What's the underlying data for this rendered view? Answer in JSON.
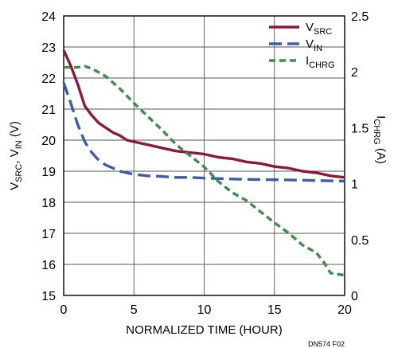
{
  "chart_data": {
    "type": "line",
    "xlabel": "NORMALIZED TIME (HOUR)",
    "ylabel_left": "V_SRC, V_IN (V)",
    "ylabel_left_parts": {
      "v1": "V",
      "sub1": "SRC",
      "sep": ", ",
      "v2": "V",
      "sub2": "IN",
      "unit": " (V)"
    },
    "ylabel_right": "I_CHRG (A)",
    "ylabel_right_parts": {
      "i": "I",
      "sub": "CHRG",
      "unit": " (A)"
    },
    "xlim": [
      0,
      20
    ],
    "ylim_left": [
      15,
      24
    ],
    "ylim_right": [
      0,
      2.5
    ],
    "x_ticks": [
      "0",
      "5",
      "10",
      "15",
      "20"
    ],
    "y_left_ticks": [
      "15",
      "16",
      "17",
      "18",
      "19",
      "20",
      "21",
      "22",
      "23",
      "24"
    ],
    "y_right_ticks": [
      "0",
      "0.5",
      "1",
      "1.5",
      "2",
      "2.5"
    ],
    "grid": true,
    "legend_position": "top-right",
    "note": "DN574 F02",
    "colors": {
      "vsrc": "#8b1a3a",
      "vin": "#3a5da8",
      "ichrg": "#3e8b4a"
    },
    "series": [
      {
        "name": "V_SRC",
        "label_main": "V",
        "label_sub": "SRC",
        "axis": "left",
        "style": "solid",
        "x": [
          0,
          0.5,
          1,
          1.5,
          2,
          2.5,
          3,
          3.5,
          4,
          4.5,
          5,
          6,
          7,
          8,
          9,
          10,
          11,
          12,
          13,
          14,
          15,
          16,
          17,
          18,
          19,
          20
        ],
        "y": [
          22.9,
          22.4,
          21.8,
          21.1,
          20.8,
          20.55,
          20.4,
          20.25,
          20.15,
          20.0,
          19.95,
          19.85,
          19.75,
          19.65,
          19.6,
          19.55,
          19.45,
          19.4,
          19.3,
          19.25,
          19.15,
          19.1,
          19.0,
          18.95,
          18.85,
          18.8
        ]
      },
      {
        "name": "V_IN",
        "label_main": "V",
        "label_sub": "IN",
        "axis": "left",
        "style": "dashed",
        "x": [
          0,
          0.5,
          1,
          1.5,
          2,
          2.5,
          3,
          3.5,
          4,
          4.5,
          5,
          6,
          7,
          8,
          9,
          10,
          12,
          14,
          16,
          18,
          20
        ],
        "y": [
          21.85,
          21.2,
          20.5,
          19.95,
          19.6,
          19.35,
          19.2,
          19.1,
          19.0,
          18.95,
          18.9,
          18.85,
          18.83,
          18.8,
          18.8,
          18.78,
          18.75,
          18.73,
          18.72,
          18.7,
          18.68
        ]
      },
      {
        "name": "I_CHRG",
        "label_main": "I",
        "label_sub": "CHRG",
        "axis": "right",
        "style": "dotted",
        "x": [
          0,
          0.5,
          1,
          1.5,
          2,
          3,
          4,
          5,
          6,
          7,
          8,
          9,
          10,
          11,
          12,
          13,
          14,
          15,
          16,
          17,
          18,
          18.5,
          19,
          19.5,
          20
        ],
        "y": [
          2.04,
          2.04,
          2.04,
          2.05,
          2.03,
          1.96,
          1.85,
          1.72,
          1.6,
          1.48,
          1.35,
          1.25,
          1.15,
          1.02,
          0.92,
          0.85,
          0.75,
          0.65,
          0.56,
          0.45,
          0.38,
          0.3,
          0.2,
          0.19,
          0.18
        ]
      }
    ]
  }
}
